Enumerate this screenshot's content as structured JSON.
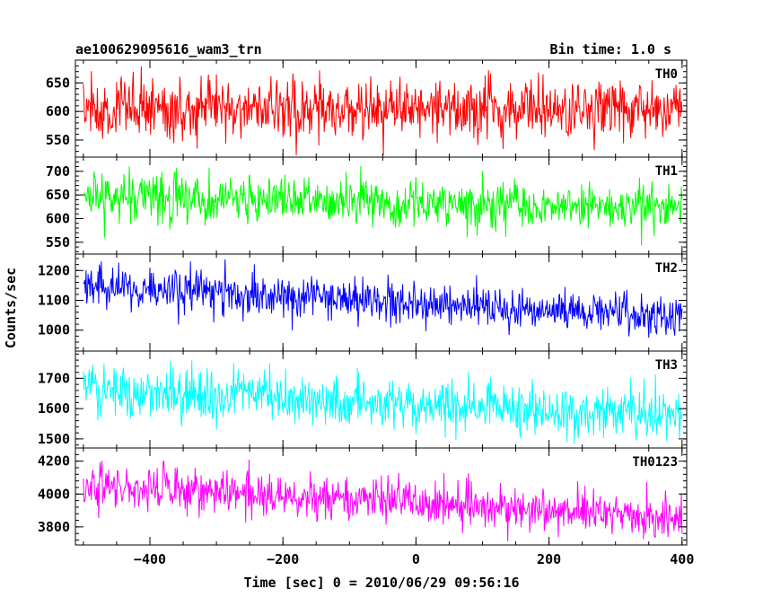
{
  "header": {
    "title": "ae100629095616_wam3_trn",
    "bin_time": "Bin time: 1.0 s"
  },
  "chart_data": {
    "type": "line",
    "xlabel": "Time [sec] 0 = 2010/06/29 09:56:16",
    "ylabel": "Counts/sec",
    "xlim": [
      -512,
      407
    ],
    "x_ticks": [
      -400,
      -200,
      0,
      200,
      400
    ],
    "x_tick_labels": [
      "−400",
      "−200",
      "0",
      "200",
      "400"
    ],
    "x_range_data": [
      -500,
      400
    ],
    "bin_seconds": 1.0,
    "panels": [
      {
        "name": "TH0",
        "color": "#ff0000",
        "ylim": [
          520,
          690
        ],
        "y_ticks": [
          550,
          600,
          650
        ],
        "y_tick_labels": [
          "550",
          "600",
          "650"
        ],
        "mean_start": 605,
        "mean_end": 605,
        "noise": 27
      },
      {
        "name": "TH1",
        "color": "#00ff00",
        "ylim": [
          525,
          730
        ],
        "y_ticks": [
          550,
          600,
          650,
          700
        ],
        "y_tick_labels": [
          "550",
          "600",
          "650",
          "700"
        ],
        "mean_start": 650,
        "mean_end": 620,
        "noise": 24
      },
      {
        "name": "TH2",
        "color": "#0000ff",
        "ylim": [
          930,
          1255
        ],
        "y_ticks": [
          1000,
          1100,
          1200
        ],
        "y_tick_labels": [
          "1000",
          "1100",
          "1200"
        ],
        "mean_start": 1150,
        "mean_end": 1045,
        "noise": 36
      },
      {
        "name": "TH3",
        "color": "#00ffff",
        "ylim": [
          1470,
          1790
        ],
        "y_ticks": [
          1500,
          1600,
          1700
        ],
        "y_tick_labels": [
          "1500",
          "1600",
          "1700"
        ],
        "mean_start": 1660,
        "mean_end": 1580,
        "noise": 42
      },
      {
        "name": "TH0123",
        "color": "#ff00ff",
        "ylim": [
          3690,
          4280
        ],
        "y_ticks": [
          3800,
          4000,
          4200
        ],
        "y_tick_labels": [
          "3800",
          "4000",
          "4200"
        ],
        "mean_start": 4060,
        "mean_end": 3850,
        "noise": 65
      }
    ]
  }
}
